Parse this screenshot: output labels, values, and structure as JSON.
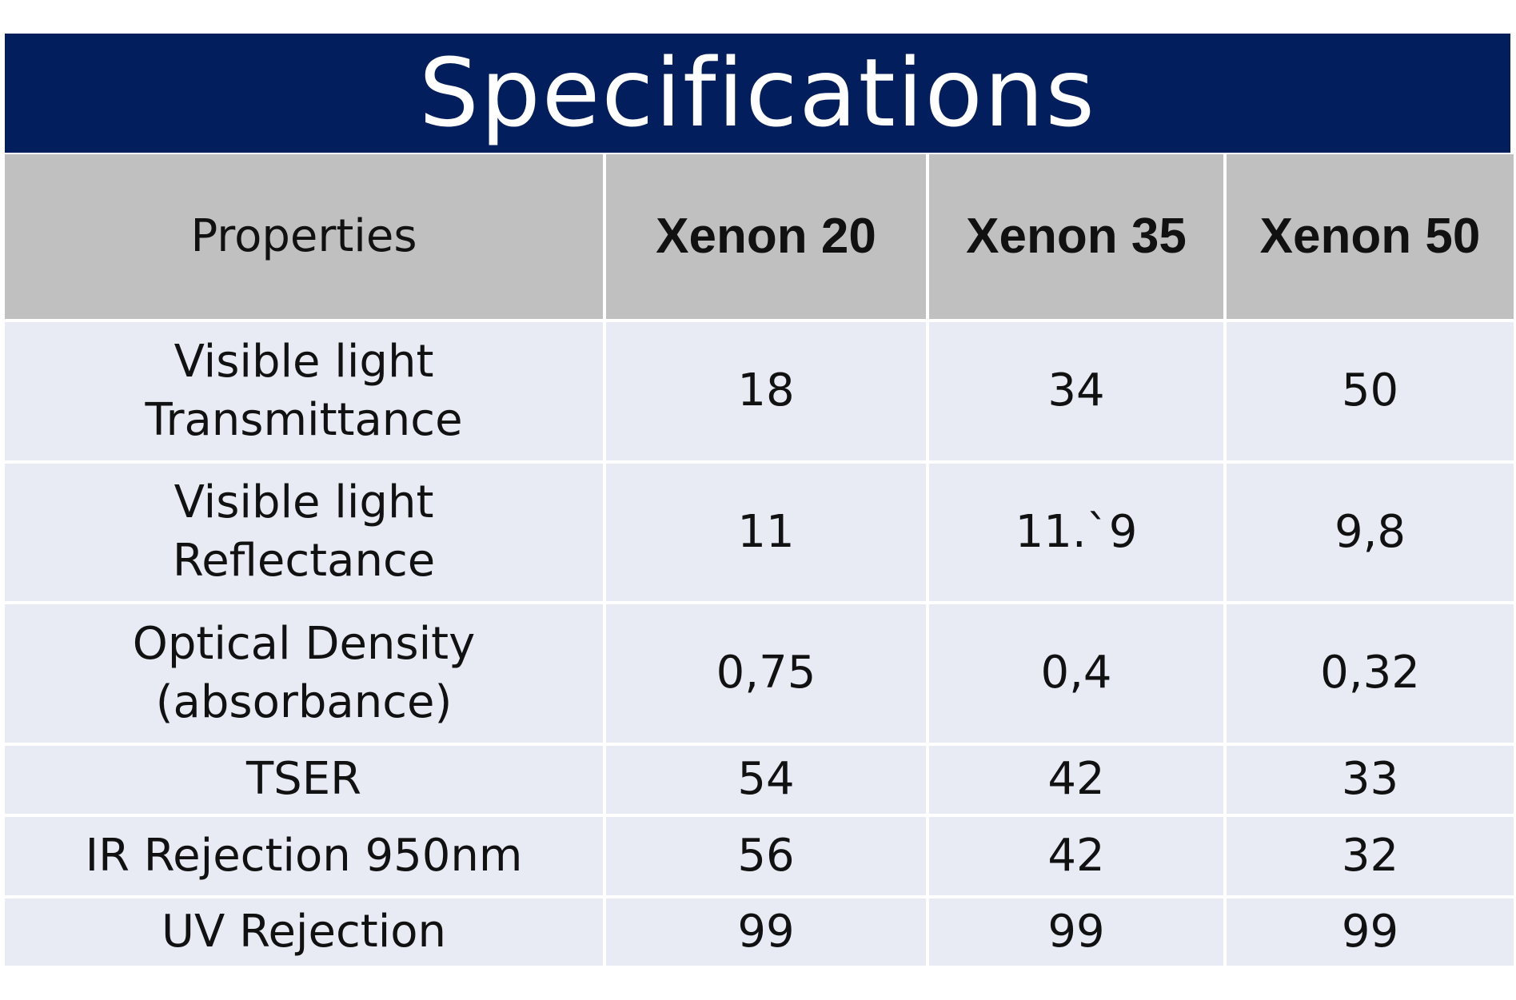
{
  "title": "Specifications",
  "table": {
    "header": [
      "Properties",
      "Xenon 20",
      "Xenon 35",
      "Xenon 50"
    ],
    "rows": [
      [
        "Visible light Transmittance",
        "18",
        "34",
        "50"
      ],
      [
        "Visible light Reflectance",
        "11",
        "11.`9",
        "9,8"
      ],
      [
        "Optical Density (absorbance)",
        "0,75",
        "0,4",
        "0,32"
      ],
      [
        "TSER",
        "54",
        "42",
        "33"
      ],
      [
        "IR Rejection 950nm",
        "56",
        "42",
        "32"
      ],
      [
        "UV Rejection",
        "99",
        "99",
        "99"
      ]
    ]
  }
}
